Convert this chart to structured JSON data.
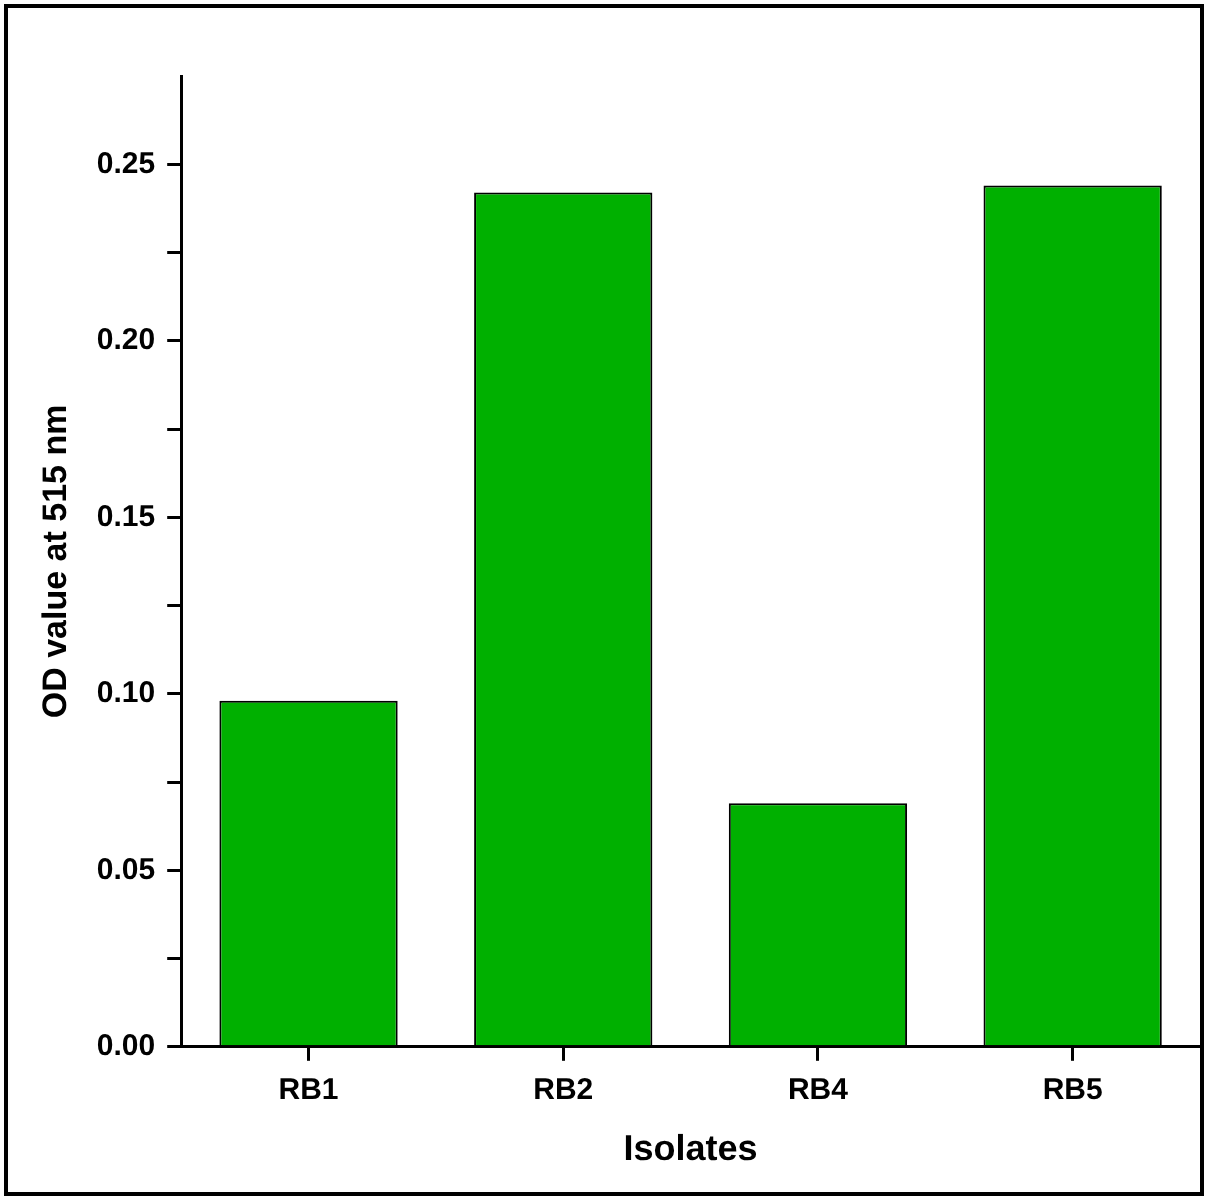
{
  "chart_data": {
    "type": "bar",
    "xlabel": "Isolates",
    "ylabel": "OD value at 515 nm",
    "categories": [
      "RB1",
      "RB2",
      "RB4",
      "RB5"
    ],
    "values": [
      0.098,
      0.242,
      0.069,
      0.244
    ],
    "color": "#00b000",
    "ylim": [
      0,
      0.275
    ],
    "yticks": [
      {
        "value": 0,
        "label": "0.00"
      },
      {
        "value": 0.025,
        "label": null
      },
      {
        "value": 0.05,
        "label": "0.05"
      },
      {
        "value": 0.075,
        "label": null
      },
      {
        "value": 0.1,
        "label": "0.10"
      },
      {
        "value": 0.125,
        "label": null
      },
      {
        "value": 0.15,
        "label": "0.15"
      },
      {
        "value": 0.175,
        "label": null
      },
      {
        "value": 0.2,
        "label": "0.20"
      },
      {
        "value": 0.225,
        "label": null
      },
      {
        "value": 0.25,
        "label": "0.25"
      }
    ],
    "grid": false,
    "legend": false
  }
}
